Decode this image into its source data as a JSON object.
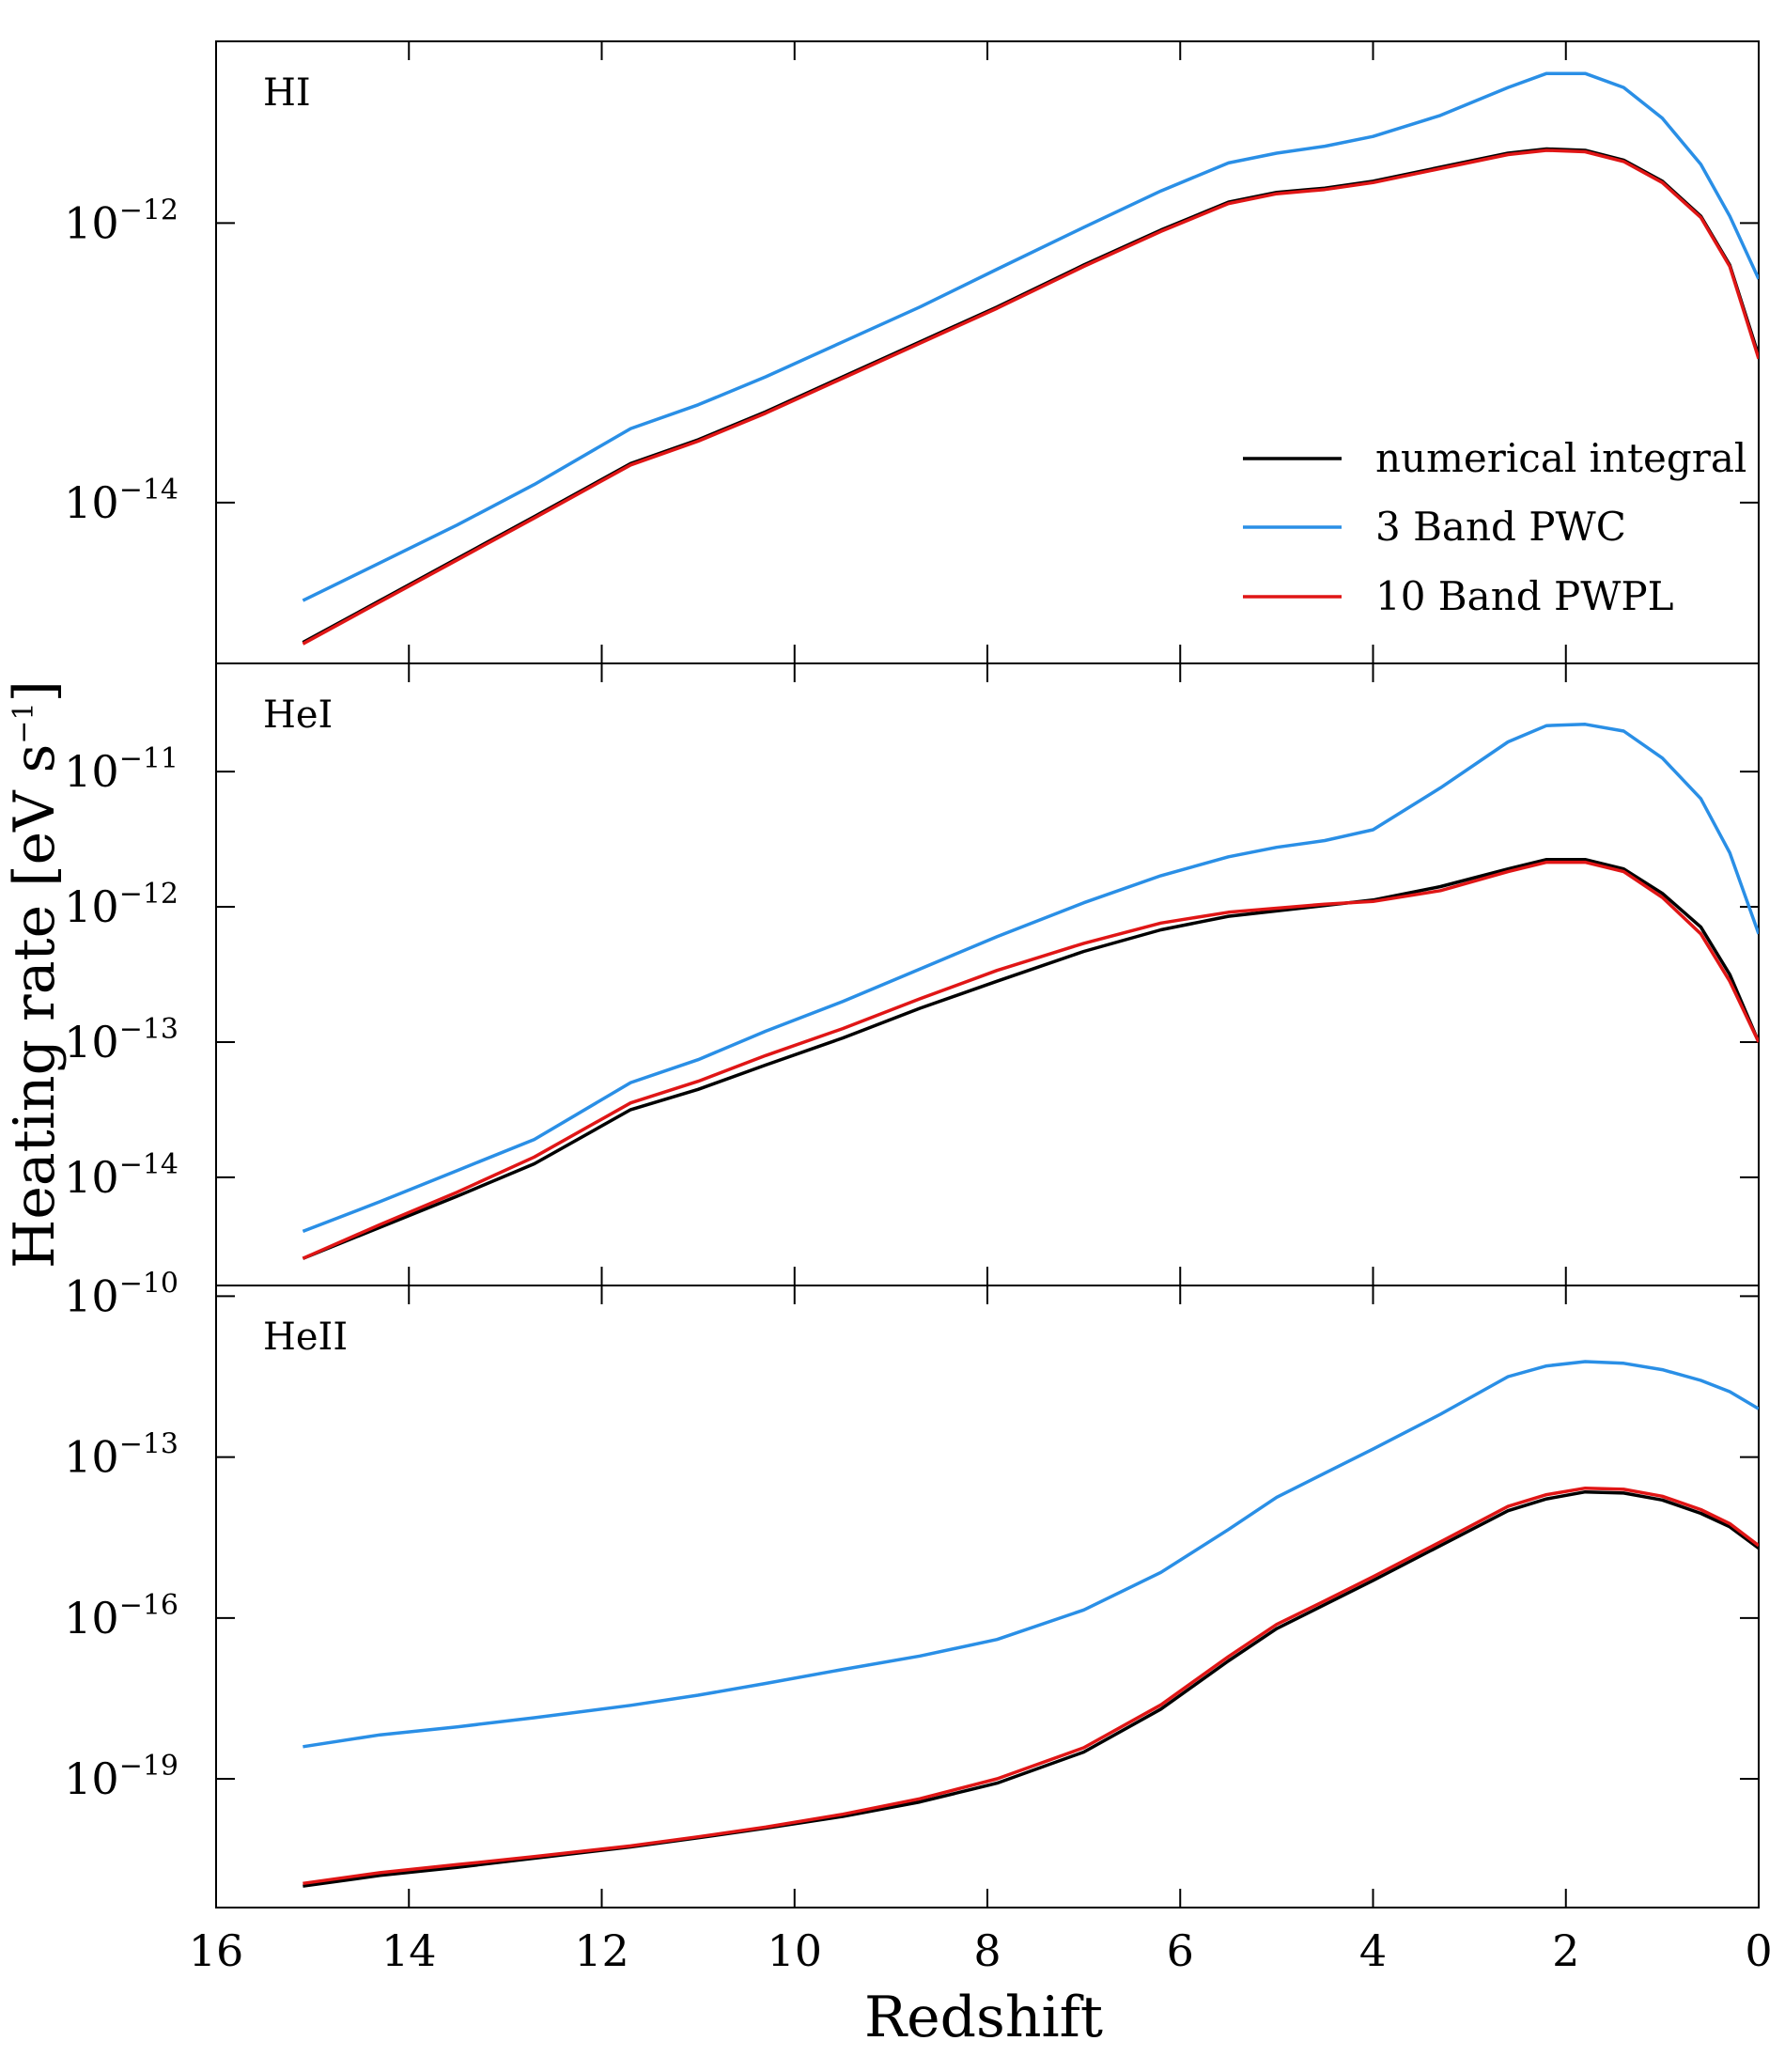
{
  "colors": {
    "numerical": "#000000",
    "pwc": "#2a8fe6",
    "pwpl": "#e01616",
    "axes": "#000000"
  },
  "chart_data": {
    "type": "line",
    "xlabel": "Redshift",
    "ylabel": "Heating rate  [eV s⁻¹]",
    "ylabel_parts": {
      "main": "Heating rate  [eV s",
      "exp": "−1",
      "close": "]"
    },
    "xlim": [
      16,
      0
    ],
    "xticks": [
      16,
      14,
      12,
      10,
      8,
      6,
      4,
      2,
      0
    ],
    "xtick_labels": [
      "16",
      "14",
      "12",
      "10",
      "8",
      "6",
      "4",
      "2",
      "0"
    ],
    "shared_x": true,
    "legend": {
      "location": "lower-right of top panel",
      "entries": [
        "numerical integral",
        "3 Band PWC",
        "10 Band PWPL"
      ]
    },
    "panels": [
      {
        "label": "HI",
        "yscale": "log",
        "ylim_log10": [
          -15.15,
          -10.7
        ],
        "yticks_log10": [
          -14,
          -12
        ],
        "ytick_labels": [
          {
            "base": "10",
            "exp": "−14"
          },
          {
            "base": "10",
            "exp": "−12"
          }
        ],
        "x": [
          15.1,
          14.3,
          13.5,
          12.7,
          11.7,
          11.0,
          10.3,
          9.5,
          8.7,
          7.9,
          7.0,
          6.2,
          5.5,
          5.0,
          4.5,
          4.0,
          3.3,
          2.6,
          2.2,
          1.8,
          1.4,
          1.0,
          0.6,
          0.3,
          0.0
        ],
        "series": [
          {
            "name": "numerical integral",
            "color_key": "numerical",
            "values": [
              -15.0,
              -14.7,
              -14.4,
              -14.1,
              -13.72,
              -13.55,
              -13.35,
              -13.1,
              -12.85,
              -12.6,
              -12.3,
              -12.05,
              -11.85,
              -11.78,
              -11.75,
              -11.7,
              -11.6,
              -11.5,
              -11.47,
              -11.48,
              -11.55,
              -11.7,
              -11.95,
              -12.3,
              -12.95
            ]
          },
          {
            "name": "3 Band PWC",
            "color_key": "pwc",
            "values": [
              -14.7,
              -14.43,
              -14.16,
              -13.87,
              -13.47,
              -13.3,
              -13.1,
              -12.85,
              -12.6,
              -12.33,
              -12.03,
              -11.77,
              -11.57,
              -11.5,
              -11.45,
              -11.38,
              -11.23,
              -11.03,
              -10.93,
              -10.93,
              -11.03,
              -11.25,
              -11.58,
              -11.95,
              -12.4
            ]
          },
          {
            "name": "10 Band PWPL",
            "color_key": "pwpl",
            "values": [
              -15.01,
              -14.71,
              -14.41,
              -14.11,
              -13.73,
              -13.56,
              -13.36,
              -13.11,
              -12.86,
              -12.61,
              -12.31,
              -12.06,
              -11.86,
              -11.79,
              -11.76,
              -11.71,
              -11.61,
              -11.51,
              -11.48,
              -11.49,
              -11.56,
              -11.71,
              -11.96,
              -12.31,
              -12.97
            ]
          }
        ]
      },
      {
        "label": "HeI",
        "yscale": "log",
        "ylim_log10": [
          -14.8,
          -10.2
        ],
        "yticks_log10": [
          -14,
          -13,
          -12,
          -11
        ],
        "ytick_labels": [
          {
            "base": "10",
            "exp": "−14"
          },
          {
            "base": "10",
            "exp": "−13"
          },
          {
            "base": "10",
            "exp": "−12"
          },
          {
            "base": "10",
            "exp": "−11"
          }
        ],
        "x": [
          15.1,
          14.3,
          13.5,
          12.7,
          11.7,
          11.0,
          10.3,
          9.5,
          8.7,
          7.9,
          7.0,
          6.2,
          5.5,
          5.0,
          4.5,
          4.0,
          3.3,
          2.6,
          2.2,
          1.8,
          1.4,
          1.0,
          0.6,
          0.3,
          0.0
        ],
        "series": [
          {
            "name": "numerical integral",
            "color_key": "numerical",
            "values": [
              -14.6,
              -14.37,
              -14.14,
              -13.9,
              -13.5,
              -13.35,
              -13.17,
              -12.97,
              -12.75,
              -12.55,
              -12.33,
              -12.17,
              -12.07,
              -12.03,
              -11.99,
              -11.95,
              -11.85,
              -11.72,
              -11.65,
              -11.65,
              -11.72,
              -11.9,
              -12.15,
              -12.5,
              -13.0
            ]
          },
          {
            "name": "3 Band PWC",
            "color_key": "pwc",
            "values": [
              -14.4,
              -14.18,
              -13.95,
              -13.72,
              -13.3,
              -13.13,
              -12.92,
              -12.7,
              -12.46,
              -12.22,
              -11.97,
              -11.77,
              -11.63,
              -11.56,
              -11.51,
              -11.43,
              -11.12,
              -10.78,
              -10.66,
              -10.65,
              -10.7,
              -10.9,
              -11.2,
              -11.6,
              -12.2
            ]
          },
          {
            "name": "10 Band PWPL",
            "color_key": "pwpl",
            "values": [
              -14.6,
              -14.35,
              -14.11,
              -13.85,
              -13.45,
              -13.29,
              -13.1,
              -12.9,
              -12.68,
              -12.47,
              -12.27,
              -12.12,
              -12.04,
              -12.01,
              -11.98,
              -11.96,
              -11.88,
              -11.74,
              -11.67,
              -11.67,
              -11.74,
              -11.93,
              -12.2,
              -12.55,
              -13.0
            ]
          }
        ]
      },
      {
        "label": "HeII",
        "yscale": "log",
        "ylim_log10": [
          -21.4,
          -9.8
        ],
        "yticks_log10": [
          -19,
          -16,
          -13,
          -10
        ],
        "ytick_labels": [
          {
            "base": "10",
            "exp": "−19"
          },
          {
            "base": "10",
            "exp": "−16"
          },
          {
            "base": "10",
            "exp": "−13"
          },
          {
            "base": "10",
            "exp": "−10"
          }
        ],
        "x": [
          15.1,
          14.3,
          13.5,
          12.7,
          11.7,
          11.0,
          10.3,
          9.5,
          8.7,
          7.9,
          7.0,
          6.2,
          5.5,
          5.0,
          4.5,
          4.0,
          3.3,
          2.6,
          2.2,
          1.8,
          1.4,
          1.0,
          0.6,
          0.3,
          0.0
        ],
        "series": [
          {
            "name": "numerical integral",
            "color_key": "numerical",
            "values": [
              -21.0,
              -20.8,
              -20.65,
              -20.48,
              -20.27,
              -20.1,
              -19.92,
              -19.7,
              -19.43,
              -19.08,
              -18.5,
              -17.7,
              -16.8,
              -16.2,
              -15.75,
              -15.3,
              -14.65,
              -14.0,
              -13.78,
              -13.65,
              -13.67,
              -13.8,
              -14.05,
              -14.3,
              -14.7
            ]
          },
          {
            "name": "3 Band PWC",
            "color_key": "pwc",
            "values": [
              -18.4,
              -18.18,
              -18.03,
              -17.86,
              -17.63,
              -17.44,
              -17.22,
              -16.96,
              -16.71,
              -16.4,
              -15.85,
              -15.15,
              -14.35,
              -13.75,
              -13.3,
              -12.85,
              -12.2,
              -11.5,
              -11.3,
              -11.22,
              -11.25,
              -11.37,
              -11.57,
              -11.78,
              -12.1
            ]
          },
          {
            "name": "10 Band PWPL",
            "color_key": "pwpl",
            "values": [
              -20.95,
              -20.75,
              -20.6,
              -20.45,
              -20.25,
              -20.08,
              -19.9,
              -19.66,
              -19.37,
              -19.0,
              -18.42,
              -17.62,
              -16.72,
              -16.12,
              -15.68,
              -15.23,
              -14.58,
              -13.92,
              -13.7,
              -13.58,
              -13.6,
              -13.73,
              -13.98,
              -14.24,
              -14.65
            ]
          }
        ]
      }
    ]
  }
}
